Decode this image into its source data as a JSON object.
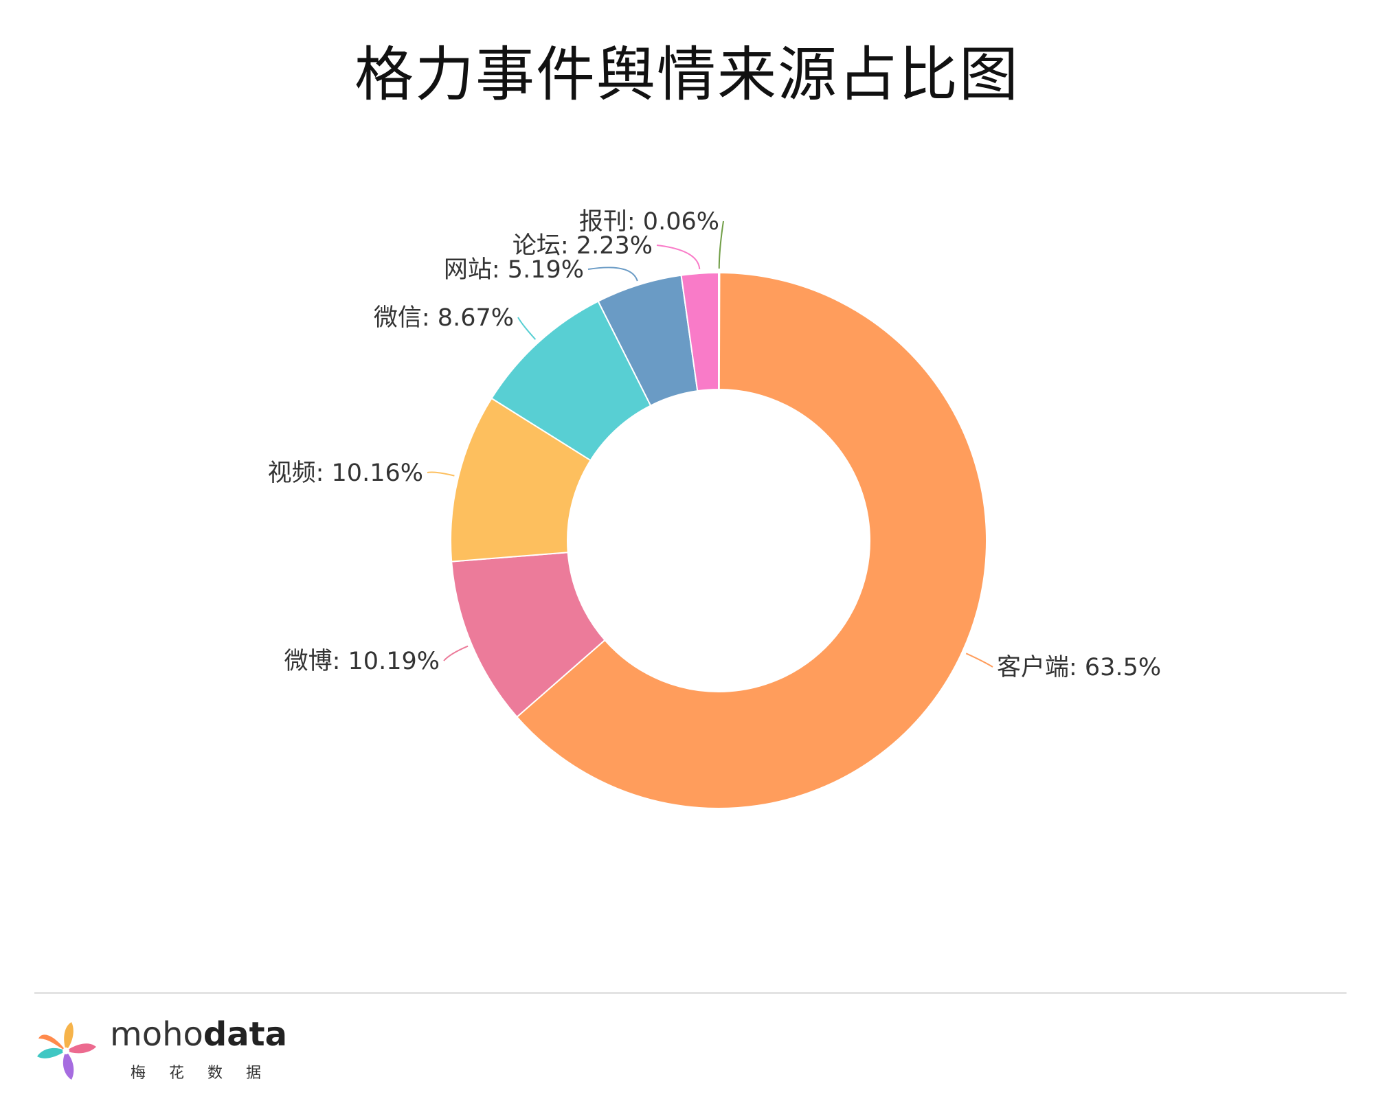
{
  "chart_data": {
    "type": "pie",
    "variant": "donut",
    "title": "格力事件舆情来源占比图",
    "legend": "none",
    "slices": [
      {
        "label": "报刊: 0.06%",
        "name": "报刊",
        "value": 0.06,
        "color": "#6f9d45"
      },
      {
        "label": "客户端: 63.5%",
        "name": "客户端",
        "value": 63.5,
        "color": "#ff9d5c"
      },
      {
        "label": "微博: 10.19%",
        "name": "微博",
        "value": 10.19,
        "color": "#ec7b9a"
      },
      {
        "label": "视频: 10.16%",
        "name": "视频",
        "value": 10.16,
        "color": "#fdbf5e"
      },
      {
        "label": "微信: 8.67%",
        "name": "微信",
        "value": 8.67,
        "color": "#58cfd3"
      },
      {
        "label": "网站: 5.19%",
        "name": "网站",
        "value": 5.19,
        "color": "#6a9bc5"
      },
      {
        "label": "论坛: 2.23%",
        "name": "论坛",
        "value": 2.23,
        "color": "#f97bc8"
      }
    ]
  },
  "brand": {
    "name_light": "moho",
    "name_bold": "data",
    "subtitle": "梅花数据"
  }
}
